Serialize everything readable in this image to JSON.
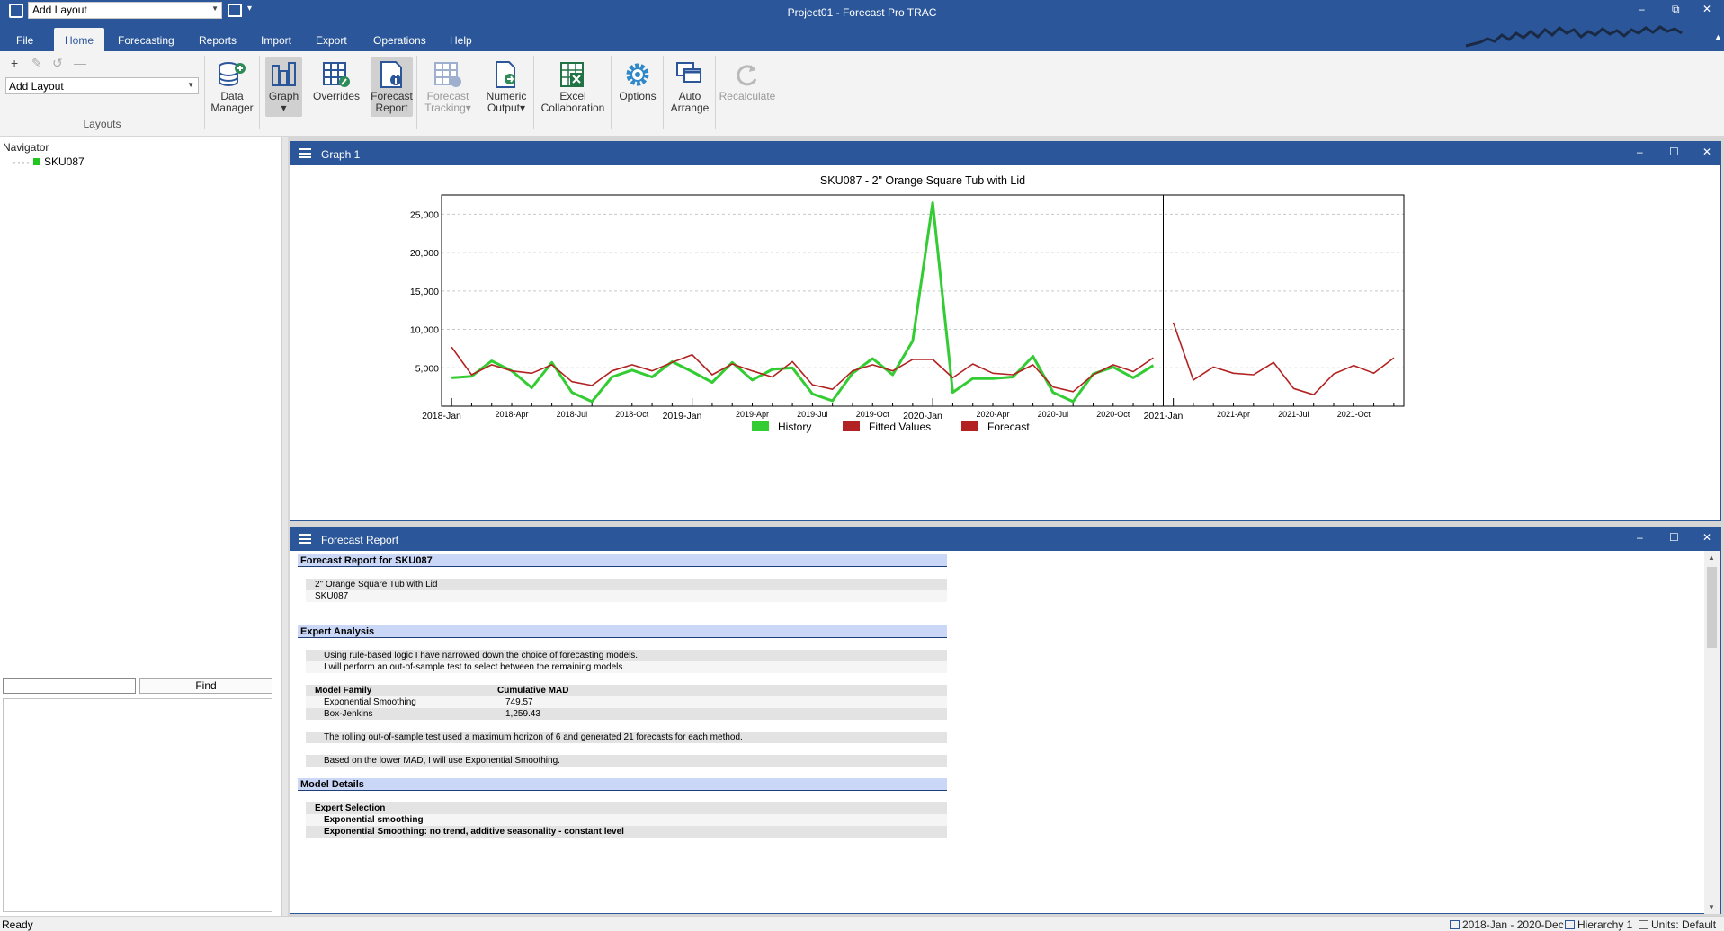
{
  "titlebar": {
    "quick_layout": "Add Layout",
    "title": "Project01 - Forecast Pro TRAC"
  },
  "tabs": [
    {
      "label": "File"
    },
    {
      "label": "Home"
    },
    {
      "label": "Forecasting"
    },
    {
      "label": "Reports"
    },
    {
      "label": "Import"
    },
    {
      "label": "Export"
    },
    {
      "label": "Operations"
    },
    {
      "label": "Help"
    }
  ],
  "ribbon": {
    "layout_combo": "Add Layout",
    "layouts_group_label": "Layouts",
    "buttons": [
      {
        "label": "Data\nManager",
        "icon": "database-add-icon"
      },
      {
        "label": "Graph",
        "icon": "bar-graph-icon",
        "dropdown": "▾"
      },
      {
        "label": "Overrides",
        "icon": "overrides-table-icon"
      },
      {
        "label": "Forecast\nReport",
        "icon": "report-info-icon"
      },
      {
        "label": "Forecast\nTracking",
        "icon": "tracking-table-icon",
        "dropdown": "▾"
      },
      {
        "label": "Numeric\nOutput",
        "icon": "numeric-output-icon",
        "dropdown": "▾"
      },
      {
        "label": "Excel\nCollaboration",
        "icon": "excel-icon"
      },
      {
        "label": "Options",
        "icon": "gear-icon"
      },
      {
        "label": "Auto\nArrange",
        "icon": "windows-arrange-icon"
      },
      {
        "label": "Recalculate",
        "icon": "refresh-icon"
      }
    ]
  },
  "navigator": {
    "title": "Navigator",
    "item": "SKU087",
    "find_label": "Find",
    "search_value": ""
  },
  "graph_window": {
    "title": "Graph 1"
  },
  "report_window": {
    "title": "Forecast Report"
  },
  "chart_data": {
    "type": "line",
    "title": "SKU087 - 2\" Orange Square Tub with Lid",
    "xlabel": "",
    "ylabel": "",
    "ylim": [
      0,
      27500
    ],
    "yticks": [
      5000,
      10000,
      15000,
      20000,
      25000
    ],
    "ytick_labels": [
      "5,000",
      "10,000",
      "15,000",
      "20,000",
      "25,000"
    ],
    "x_major_labels": [
      "2018-Jan",
      "2019-Jan",
      "2020-Jan",
      "2021-Jan"
    ],
    "x_minor_labels": [
      "2018-Apr",
      "2018-Jul",
      "2018-Oct",
      "2019-Apr",
      "2019-Jul",
      "2019-Oct",
      "2020-Apr",
      "2020-Jul",
      "2020-Oct",
      "2021-Apr",
      "2021-Jul",
      "2021-Oct"
    ],
    "history_end": "2020-Dec",
    "grid": "horizontal dashed",
    "legend_position": "bottom",
    "series": [
      {
        "name": "History",
        "color": "#33cc33",
        "start": "2018-Jan",
        "values": [
          3700,
          3900,
          5900,
          4600,
          2400,
          5700,
          1800,
          600,
          3800,
          4700,
          3800,
          5800,
          4500,
          3100,
          5700,
          3400,
          4800,
          5000,
          1600,
          700,
          4300,
          6200,
          4100,
          8500,
          26500,
          1800,
          3600,
          3600,
          3800,
          6500,
          1800,
          600,
          4200,
          5100,
          3700,
          5300
        ]
      },
      {
        "name": "Fitted Values",
        "color": "#b22222",
        "start": "2018-Jan",
        "values": [
          7700,
          4100,
          5400,
          4600,
          4300,
          5400,
          3200,
          2700,
          4600,
          5400,
          4600,
          5700,
          6700,
          4100,
          5500,
          4600,
          3800,
          5800,
          2800,
          2200,
          4600,
          5400,
          4600,
          6100,
          6100,
          3700,
          5500,
          4300,
          4100,
          5400,
          2500,
          1900,
          4100,
          5400,
          4500,
          6300
        ]
      },
      {
        "name": "Forecast",
        "color": "#b22222",
        "start": "2021-Jan",
        "values": [
          10900,
          3400,
          5100,
          4300,
          4100,
          5700,
          2300,
          1500,
          4200,
          5300,
          4300,
          6300
        ]
      }
    ]
  },
  "report": {
    "header": "Forecast Report for SKU087",
    "item_desc": "2\" Orange Square Tub with Lid",
    "item_code": "SKU087",
    "expert_analysis_header": "Expert Analysis",
    "ea_line1": "Using rule-based logic I have narrowed down the choice of forecasting models.",
    "ea_line2": "I will perform an out-of-sample test to select between the remaining models.",
    "table_col1": "Model Family",
    "table_col2": "Cumulative MAD",
    "rows": [
      {
        "family": "Exponential Smoothing",
        "mad": "749.57"
      },
      {
        "family": "Box-Jenkins",
        "mad": "1,259.43"
      }
    ],
    "rolling_text": "The rolling out-of-sample test used a maximum horizon of 6 and generated 21 forecasts for each method.",
    "based_text": "Based on the lower MAD, I will use Exponential Smoothing.",
    "model_details_header": "Model Details",
    "expert_selection": "Expert Selection",
    "exp_smoothing": "Exponential smoothing",
    "model_desc": "Exponential Smoothing: no trend, additive seasonality - constant level"
  },
  "status": {
    "ready": "Ready",
    "range": "2018-Jan - 2020-Dec",
    "hierarchy": "Hierarchy 1",
    "units": "Units: Default"
  }
}
